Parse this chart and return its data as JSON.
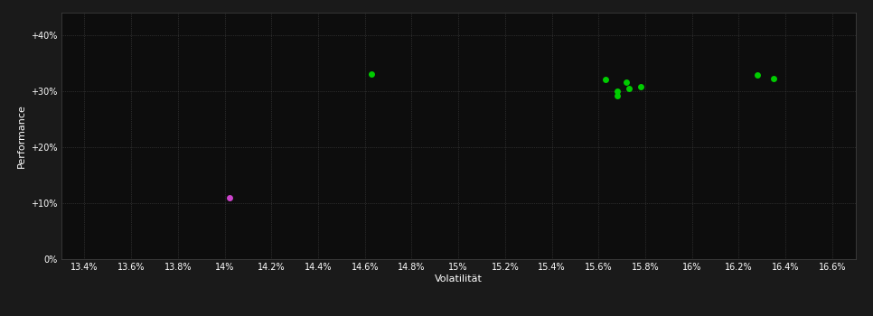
{
  "background_color": "#1a1a1a",
  "plot_bg_color": "#0d0d0d",
  "grid_color": "#555555",
  "text_color": "#ffffff",
  "xlabel": "Volatilität",
  "ylabel": "Performance",
  "xlim": [
    0.133,
    0.167
  ],
  "ylim": [
    0.0,
    0.44
  ],
  "xticks": [
    0.134,
    0.136,
    0.138,
    0.14,
    0.142,
    0.144,
    0.146,
    0.148,
    0.15,
    0.152,
    0.154,
    0.156,
    0.158,
    0.16,
    0.162,
    0.164,
    0.166
  ],
  "yticks": [
    0.0,
    0.1,
    0.2,
    0.3,
    0.4
  ],
  "ytick_labels": [
    "0%",
    "+10%",
    "+20%",
    "+30%",
    "+40%"
  ],
  "xtick_labels": [
    "13.4%",
    "13.6%",
    "13.8%",
    "14%",
    "14.2%",
    "14.4%",
    "14.6%",
    "14.8%",
    "15%",
    "15.2%",
    "15.4%",
    "15.6%",
    "15.8%",
    "16%",
    "16.2%",
    "16.4%",
    "16.6%"
  ],
  "green_points": [
    [
      0.1463,
      0.33
    ],
    [
      0.1563,
      0.32
    ],
    [
      0.1572,
      0.316
    ],
    [
      0.1578,
      0.308
    ],
    [
      0.1573,
      0.304
    ],
    [
      0.1568,
      0.299
    ],
    [
      0.1568,
      0.292
    ],
    [
      0.1628,
      0.328
    ],
    [
      0.1635,
      0.322
    ]
  ],
  "magenta_points": [
    [
      0.1402,
      0.11
    ]
  ],
  "green_color": "#00cc00",
  "magenta_color": "#cc44cc",
  "marker_size": 5
}
